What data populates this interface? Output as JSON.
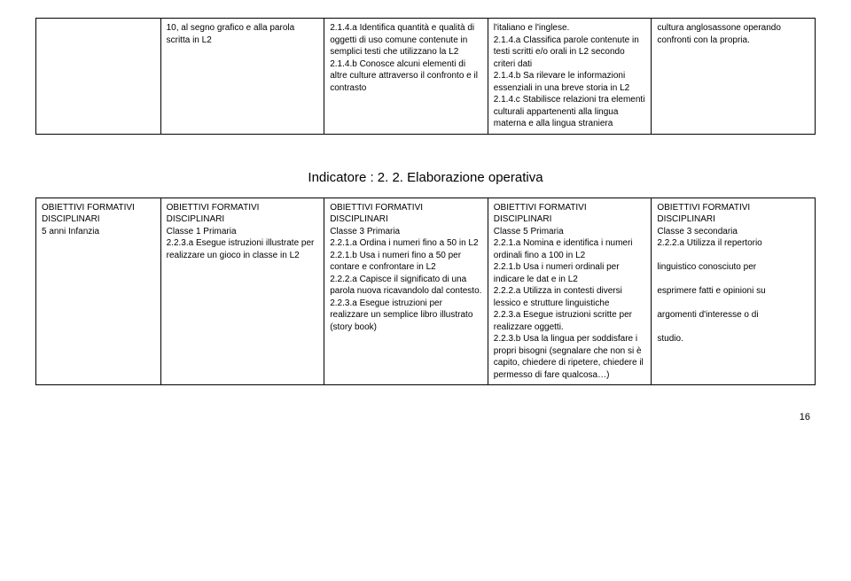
{
  "topTable": {
    "row": [
      "10, al segno grafico e alla parola scritta in L2",
      "2.1.4.a Identifica quantità e qualità di oggetti di uso comune contenute in semplici testi che utilizzano la L2\n2.1.4.b Conosce alcuni elementi di altre culture attraverso il confronto e il contrasto",
      "l'italiano e l'inglese.\n2.1.4.a Classifica parole contenute in testi scritti e/o orali in L2 secondo criteri dati\n2.1.4.b Sa rilevare le informazioni essenziali in una breve storia in L2\n2.1.4.c Stabilisce relazioni tra elementi culturali appartenenti alla lingua materna e alla lingua straniera",
      "cultura anglosassone operando confronti con la propria."
    ]
  },
  "indicatorHeading": "Indicatore : 2. 2. Elaborazione operativa",
  "bottomTable": {
    "row": [
      "OBIETTIVI FORMATIVI DISCIPLINARI\n5 anni Infanzia",
      "OBIETTIVI FORMATIVI DISCIPLINARI\nClasse 1 Primaria\n2.2.3.a Esegue istruzioni illustrate per realizzare un gioco in classe in L2",
      "OBIETTIVI FORMATIVI DISCIPLINARI\nClasse 3 Primaria\n2.2.1.a Ordina i numeri fino a 50 in L2\n2.2.1.b Usa i numeri fino a 50 per contare e confrontare in L2\n2.2.2.a Capisce il significato di una parola nuova ricavandolo dal contesto.\n2.2.3.a Esegue istruzioni per realizzare un semplice libro illustrato (story book)",
      "OBIETTIVI FORMATIVI DISCIPLINARI\nClasse 5 Primaria\n2.2.1.a Nomina e identifica i numeri ordinali fino a 100 in L2\n2.2.1.b Usa i numeri ordinali per indicare le dat e in L2\n2.2.2.a Utilizza in contesti diversi lessico e strutture linguistiche\n2.2.3.a Esegue istruzioni scritte per realizzare oggetti.\n2.2.3.b Usa la lingua per soddisfare i propri bisogni (segnalare che non si è capito, chiedere di ripetere, chiedere il permesso di fare qualcosa…)",
      "OBIETTIVI FORMATIVI DISCIPLINARI\nClasse 3 secondaria\n2.2.2.a Utilizza il repertorio\n\nlinguistico conosciuto per\n\nesprimere fatti e opinioni su\n\nargomenti d'interesse o di\n\nstudio."
    ]
  },
  "pageNumber": "16"
}
